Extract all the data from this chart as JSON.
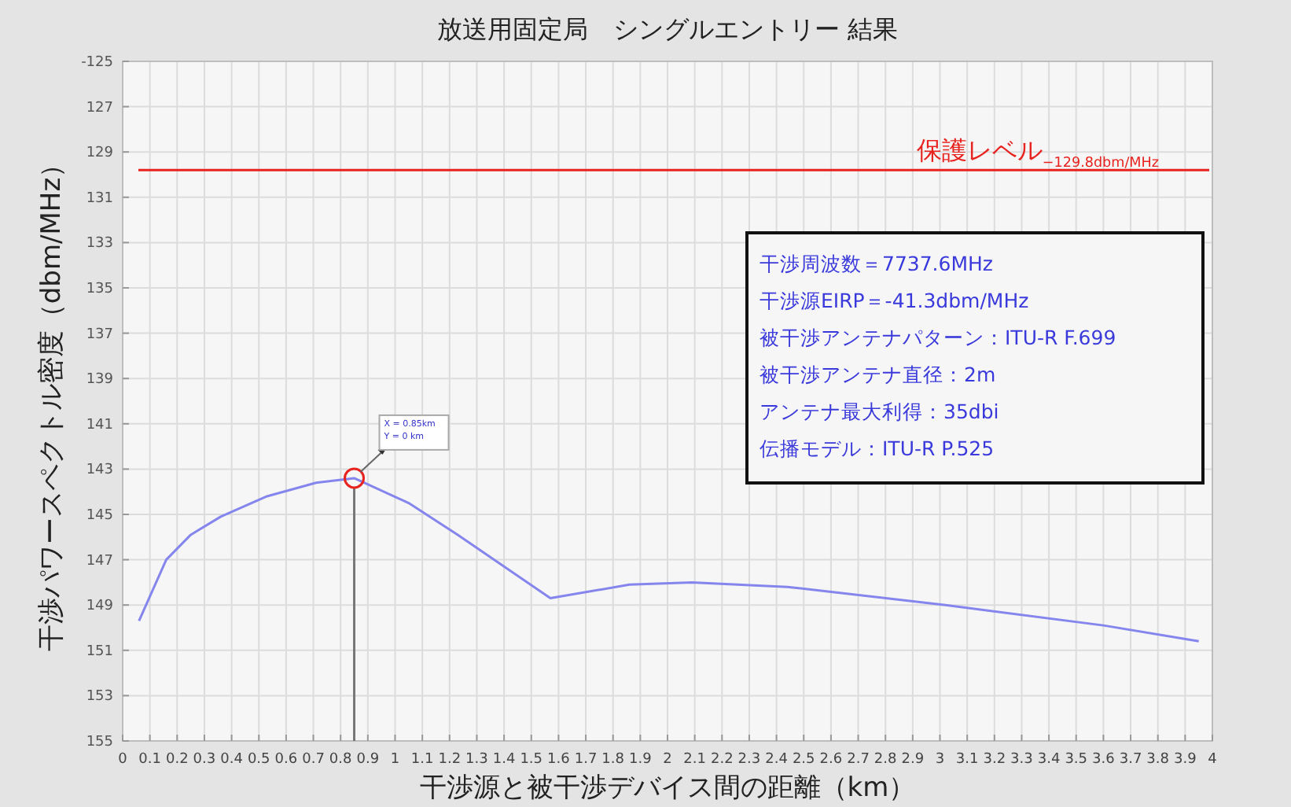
{
  "chart_data": {
    "type": "line",
    "title": "放送用固定局　シングルエントリー 結果",
    "xlabel": "干渉源と被干渉デバイス間の距離（km）",
    "ylabel": "干渉パワースペクトル密度（dbm/MHz）",
    "xlim": [
      0,
      4
    ],
    "xticks": [
      0,
      0.1,
      0.2,
      0.3,
      0.4,
      0.5,
      0.6,
      0.7,
      0.8,
      0.9,
      1,
      1.1,
      1.2,
      1.3,
      1.4,
      1.5,
      1.6,
      1.7,
      1.8,
      1.9,
      2,
      2.1,
      2.2,
      2.3,
      2.4,
      2.5,
      2.6,
      2.7,
      2.8,
      2.9,
      3,
      3.1,
      3.2,
      3.3,
      3.4,
      3.5,
      3.6,
      3.7,
      3.8,
      3.9,
      4
    ],
    "ylim": [
      -155,
      -125
    ],
    "yticks": [
      {
        "value": -125,
        "label": "-125"
      },
      {
        "value": -127,
        "label": "127"
      },
      {
        "value": -129,
        "label": "129"
      },
      {
        "value": -131,
        "label": "131"
      },
      {
        "value": -133,
        "label": "133"
      },
      {
        "value": -135,
        "label": "135"
      },
      {
        "value": -137,
        "label": "137"
      },
      {
        "value": -139,
        "label": "139"
      },
      {
        "value": -141,
        "label": "141"
      },
      {
        "value": -143,
        "label": "143"
      },
      {
        "value": -145,
        "label": "145"
      },
      {
        "value": -147,
        "label": "147"
      },
      {
        "value": -149,
        "label": "149"
      },
      {
        "value": -151,
        "label": "151"
      },
      {
        "value": -153,
        "label": "153"
      },
      {
        "value": -155,
        "label": "155"
      }
    ],
    "grid": true,
    "marker": "none",
    "line_style": "solid",
    "series": [
      {
        "color": "#8585ee",
        "x": [
          0.06,
          0.16,
          0.25,
          0.36,
          0.53,
          0.71,
          0.85,
          1.05,
          1.23,
          1.4,
          1.57,
          1.86,
          2.09,
          2.44,
          3.02,
          3.6,
          3.95
        ],
        "values": [
          -149.7,
          -147.0,
          -145.9,
          -145.1,
          -144.2,
          -143.6,
          -143.4,
          -144.5,
          -145.9,
          -147.3,
          -148.7,
          -148.1,
          -148.0,
          -148.2,
          -149.0,
          -149.9,
          -150.6
        ]
      }
    ],
    "ref_lines": [
      {
        "axis": "y",
        "value": -129.8,
        "label": "保護レベル$_{−129.8dbm/MHz}$",
        "color": "#e8231f"
      }
    ],
    "annotations": [
      {
        "text": "X = 0.85km\nY = 0 km",
        "x": 0.85,
        "y": -143.4
      },
      "干渉周波数＝7737.6MHz",
      "干渉源EIRP＝-41.3dbm/MHz",
      "被干渉アンテナパターン：ITU-R F.699",
      "被干渉アンテナ直径：2m",
      "アンテナ最大利得：35dbi",
      "伝播モデル：ITU-R P.525"
    ]
  }
}
